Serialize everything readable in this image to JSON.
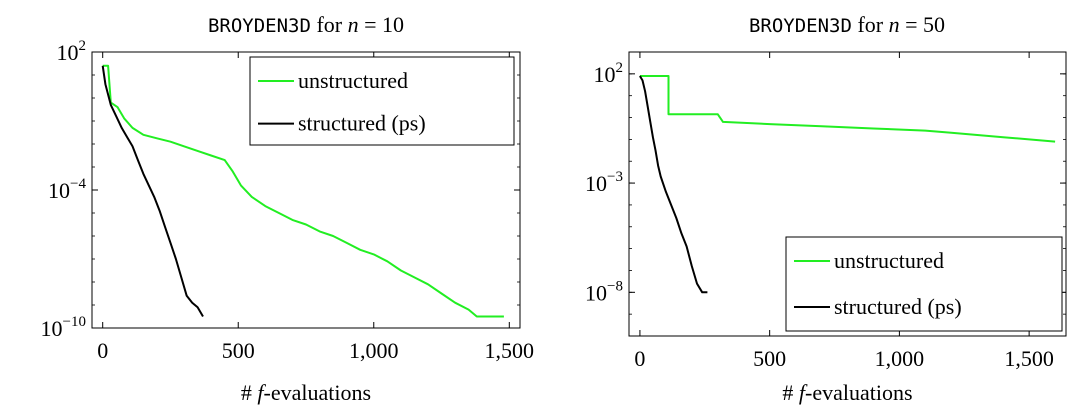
{
  "colors": {
    "unstructured": "#22ee22",
    "structured": "#000000"
  },
  "chart_data": [
    {
      "type": "line",
      "title": {
        "name": "BROYDEN3D",
        "mid": " for ",
        "math": "n",
        "rest": " = 10"
      },
      "xlabel": {
        "hash": "# ",
        "f": "f",
        "rest": "-evaluations"
      },
      "ylabel": "",
      "xlim": [
        0,
        1500
      ],
      "ylim_log10": [
        -10,
        2
      ],
      "y_scale": "log",
      "x_ticks": [
        {
          "value": 0,
          "label": "0"
        },
        {
          "value": 500,
          "label": "500"
        },
        {
          "value": 1000,
          "label": "1,000"
        },
        {
          "value": 1500,
          "label": "1,500"
        }
      ],
      "y_ticks": [
        {
          "exp": 2,
          "base": "10",
          "sup": "2"
        },
        {
          "exp": -4,
          "base": "10",
          "sup": "−4"
        },
        {
          "exp": -10,
          "base": "10",
          "sup": "−10"
        }
      ],
      "legend_position": "top-right",
      "series": [
        {
          "name": "unstructured",
          "x": [
            0,
            20,
            30,
            55,
            80,
            110,
            150,
            200,
            250,
            300,
            350,
            400,
            450,
            480,
            510,
            550,
            600,
            650,
            700,
            750,
            800,
            850,
            900,
            950,
            1000,
            1050,
            1100,
            1150,
            1200,
            1250,
            1300,
            1350,
            1380,
            1480
          ],
          "y": [
            1.4,
            1.4,
            -0.2,
            -0.4,
            -0.9,
            -1.3,
            -1.6,
            -1.75,
            -1.9,
            -2.1,
            -2.3,
            -2.5,
            -2.7,
            -3.2,
            -3.8,
            -4.3,
            -4.7,
            -5.0,
            -5.3,
            -5.5,
            -5.8,
            -6.0,
            -6.3,
            -6.6,
            -6.8,
            -7.1,
            -7.5,
            -7.8,
            -8.1,
            -8.5,
            -8.9,
            -9.2,
            -9.5,
            -9.5
          ]
        },
        {
          "name": "structured (ps)",
          "x": [
            0,
            10,
            30,
            50,
            70,
            90,
            110,
            130,
            150,
            170,
            190,
            210,
            230,
            250,
            270,
            290,
            310,
            330,
            350,
            370
          ],
          "y": [
            1.4,
            0.6,
            -0.3,
            -0.8,
            -1.3,
            -1.7,
            -2.1,
            -2.7,
            -3.3,
            -3.8,
            -4.3,
            -4.9,
            -5.6,
            -6.3,
            -7.0,
            -7.8,
            -8.6,
            -8.9,
            -9.1,
            -9.5
          ]
        }
      ]
    },
    {
      "type": "line",
      "title": {
        "name": "BROYDEN3D",
        "mid": " for ",
        "math": "n",
        "rest": " = 50"
      },
      "xlabel": {
        "hash": "# ",
        "f": "f",
        "rest": "-evaluations"
      },
      "ylabel": "",
      "xlim": [
        0,
        1600
      ],
      "ylim_log10": [
        -10,
        3
      ],
      "y_scale": "log",
      "x_ticks": [
        {
          "value": 0,
          "label": "0"
        },
        {
          "value": 500,
          "label": "500"
        },
        {
          "value": 1000,
          "label": "1,000"
        },
        {
          "value": 1500,
          "label": "1,500"
        }
      ],
      "y_ticks": [
        {
          "exp": 2,
          "base": "10",
          "sup": "2"
        },
        {
          "exp": -3,
          "base": "10",
          "sup": "−3"
        },
        {
          "exp": -8,
          "base": "10",
          "sup": "−8"
        }
      ],
      "legend_position": "bottom-right",
      "series": [
        {
          "name": "unstructured",
          "x": [
            0,
            110,
            110,
            300,
            320,
            500,
            700,
            900,
            1100,
            1200,
            1400,
            1600
          ],
          "y": [
            1.9,
            1.9,
            0.15,
            0.15,
            -0.2,
            -0.3,
            -0.4,
            -0.5,
            -0.6,
            -0.7,
            -0.9,
            -1.1
          ]
        },
        {
          "name": "structured (ps)",
          "x": [
            0,
            10,
            20,
            30,
            40,
            50,
            60,
            70,
            80,
            100,
            120,
            140,
            160,
            180,
            200,
            220,
            240,
            260
          ],
          "y": [
            1.9,
            1.7,
            1.2,
            0.5,
            -0.2,
            -0.9,
            -1.5,
            -2.2,
            -2.7,
            -3.4,
            -4.0,
            -4.6,
            -5.3,
            -5.9,
            -6.8,
            -7.6,
            -8.0,
            -8.0
          ]
        }
      ]
    }
  ]
}
